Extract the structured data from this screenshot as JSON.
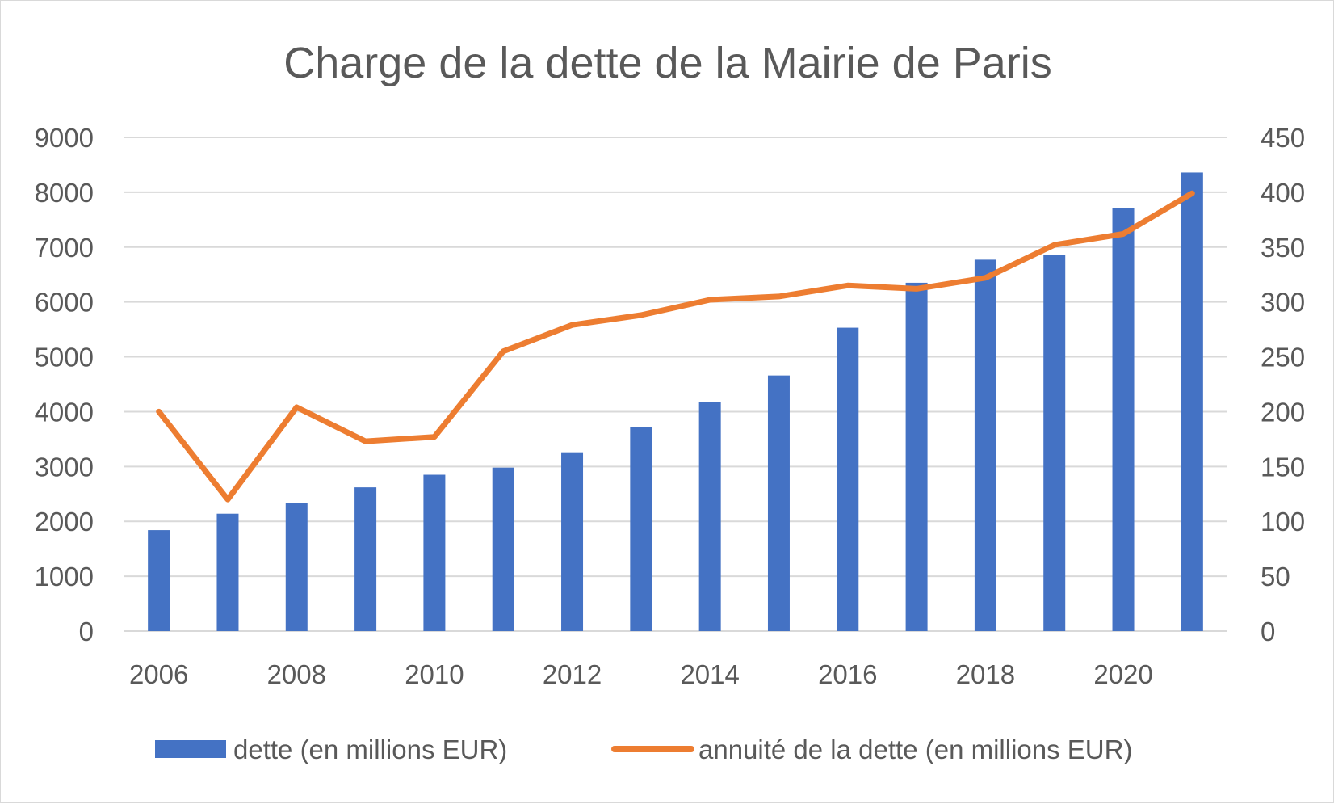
{
  "chart_data": {
    "type": "bar",
    "title": "Charge de la dette de la Mairie de Paris",
    "xlabel": "",
    "ylabel": "",
    "x": [
      2006,
      2007,
      2008,
      2009,
      2010,
      2011,
      2012,
      2013,
      2014,
      2015,
      2016,
      2017,
      2018,
      2019,
      2020,
      2021
    ],
    "x_tick_labels": [
      "2006",
      "2008",
      "2010",
      "2012",
      "2014",
      "2016",
      "2018",
      "2020"
    ],
    "y_left": {
      "ylim": [
        0,
        9000
      ],
      "ticks": [
        0,
        1000,
        2000,
        3000,
        4000,
        5000,
        6000,
        7000,
        8000,
        9000
      ]
    },
    "y_right": {
      "ylim": [
        0,
        450
      ],
      "ticks": [
        0,
        50,
        100,
        150,
        200,
        250,
        300,
        350,
        400,
        450
      ]
    },
    "series": [
      {
        "name": "dette (en millions EUR)",
        "type": "bar",
        "axis": "left",
        "color": "#4472c4",
        "values": [
          1840,
          2140,
          2330,
          2620,
          2850,
          2980,
          3260,
          3720,
          4170,
          4660,
          5530,
          6350,
          6770,
          6850,
          7710,
          8360
        ]
      },
      {
        "name": "annuité de la dette (en millions EUR)",
        "type": "line",
        "axis": "right",
        "color": "#ed7d31",
        "values": [
          200,
          120,
          204,
          173,
          177,
          255,
          279,
          288,
          302,
          305,
          315,
          312,
          322,
          352,
          362,
          399
        ]
      }
    ],
    "grid": true,
    "legend_position": "bottom"
  }
}
